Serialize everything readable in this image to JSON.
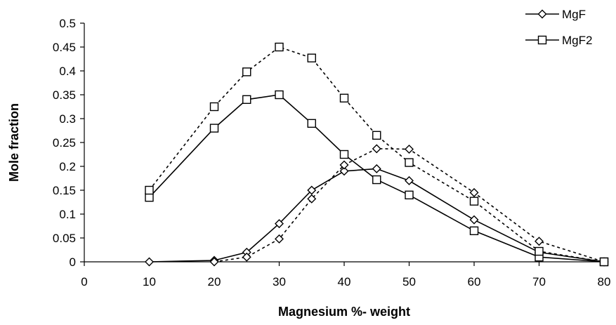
{
  "chart_data": {
    "type": "line",
    "xlabel": "Magnesium %- weight",
    "ylabel": "Mole fraction",
    "xlim": [
      0,
      80
    ],
    "ylim": [
      0,
      0.5
    ],
    "x_ticks": [
      0,
      10,
      20,
      30,
      40,
      50,
      60,
      70,
      80
    ],
    "y_ticks": [
      0,
      0.05,
      0.1,
      0.15,
      0.2,
      0.25,
      0.3,
      0.35,
      0.4,
      0.45,
      0.5
    ],
    "x_tick_labels": [
      "0",
      "10",
      "20",
      "30",
      "40",
      "50",
      "60",
      "70",
      "80"
    ],
    "y_tick_labels": [
      "0",
      "0.05",
      "0.1",
      "0.15",
      "0.2",
      "0.25",
      "0.3",
      "0.35",
      "0.4",
      "0.45",
      "0.5"
    ],
    "grid": false,
    "legend_position": "top-right",
    "legend": [
      {
        "label": "MgF",
        "marker": "diamond"
      },
      {
        "label": "MgF2",
        "marker": "square"
      }
    ],
    "series": [
      {
        "name": "MgF",
        "marker": "diamond",
        "line_style": "solid",
        "x": [
          10,
          20,
          25,
          30,
          35,
          40,
          45,
          50,
          60,
          70,
          80
        ],
        "y": [
          0.0,
          0.003,
          0.02,
          0.08,
          0.15,
          0.19,
          0.195,
          0.17,
          0.088,
          0.02,
          0.0
        ]
      },
      {
        "name": "MgF2",
        "marker": "square",
        "line_style": "solid",
        "x": [
          10,
          20,
          25,
          30,
          35,
          40,
          45,
          50,
          60,
          70,
          80
        ],
        "y": [
          0.135,
          0.28,
          0.34,
          0.35,
          0.29,
          0.225,
          0.172,
          0.14,
          0.065,
          0.01,
          0.0
        ]
      },
      {
        "marker": "diamond",
        "line_style": "dashed",
        "x": [
          20,
          25,
          30,
          35,
          40,
          45,
          50,
          60,
          70,
          80
        ],
        "y": [
          0.0,
          0.01,
          0.048,
          0.132,
          0.203,
          0.237,
          0.236,
          0.145,
          0.043,
          0.0
        ]
      },
      {
        "marker": "square",
        "line_style": "dashed",
        "x": [
          10,
          20,
          25,
          30,
          35,
          40,
          45,
          50,
          60,
          70,
          80
        ],
        "y": [
          0.15,
          0.325,
          0.398,
          0.45,
          0.427,
          0.343,
          0.265,
          0.208,
          0.127,
          0.022,
          0.0
        ]
      }
    ]
  }
}
